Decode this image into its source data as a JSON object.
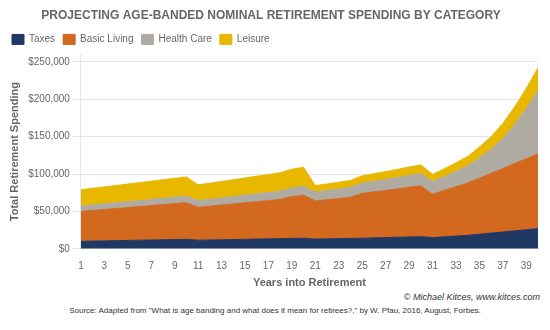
{
  "chart_data": {
    "type": "area",
    "title": "PROJECTING AGE-BANDED NOMINAL RETIREMENT SPENDING BY CATEGORY",
    "x_label": "Years into Retirement",
    "y_label": "Total Retirement Spending",
    "annotations": [
      "© Michael Kitces, www.kitces.com",
      "Source: Adapted from \"What is age banding and what does it mean for retirees?,\" by W. Pfau, 2016, August, Forbes."
    ],
    "x": [
      1,
      2,
      3,
      4,
      5,
      6,
      7,
      8,
      9,
      10,
      11,
      12,
      13,
      14,
      15,
      16,
      17,
      18,
      19,
      20,
      21,
      22,
      23,
      24,
      25,
      26,
      27,
      28,
      29,
      30,
      31,
      32,
      33,
      34,
      35,
      36,
      37,
      38,
      39,
      40
    ],
    "series": [
      {
        "name": "Taxes",
        "color": "#1f3864",
        "values": [
          10000,
          10300,
          10600,
          10900,
          11200,
          11500,
          11800,
          12100,
          12400,
          12700,
          11500,
          11800,
          12100,
          12400,
          12700,
          13000,
          13300,
          13600,
          13900,
          14200,
          13000,
          13300,
          13600,
          13900,
          14200,
          14600,
          15000,
          15400,
          15800,
          16200,
          15000,
          16000,
          17000,
          18000,
          19500,
          21000,
          22500,
          24000,
          25500,
          27000
        ]
      },
      {
        "name": "Basic Living",
        "color": "#d2691e",
        "values": [
          40000,
          41000,
          42000,
          43000,
          44000,
          45000,
          46000,
          47000,
          48000,
          49000,
          44000,
          45200,
          46400,
          47600,
          48800,
          50000,
          51200,
          52400,
          56000,
          57500,
          51000,
          52300,
          53600,
          55000,
          60000,
          61500,
          63000,
          64700,
          66500,
          68000,
          58000,
          62000,
          66000,
          70000,
          75000,
          80000,
          85000,
          90000,
          95000,
          100000
        ]
      },
      {
        "name": "Health Care",
        "color": "#b0aba2",
        "values": [
          7000,
          7200,
          7400,
          7600,
          7800,
          8000,
          8200,
          8400,
          8600,
          8800,
          9000,
          9300,
          9600,
          9900,
          10200,
          10500,
          10800,
          11100,
          11500,
          11800,
          12000,
          12400,
          12800,
          13200,
          13700,
          14200,
          14700,
          15200,
          15800,
          16400,
          17000,
          18500,
          20500,
          23000,
          27000,
          32000,
          40000,
          52000,
          67000,
          85000
        ]
      },
      {
        "name": "Leisure",
        "color": "#e8b800",
        "values": [
          22000,
          22400,
          22800,
          23200,
          23600,
          24000,
          24400,
          24800,
          25200,
          25600,
          21000,
          21500,
          22000,
          22500,
          23000,
          23500,
          24000,
          24500,
          25000,
          25500,
          8500,
          8700,
          9000,
          9300,
          9700,
          10100,
          10500,
          10900,
          11300,
          11700,
          9500,
          10500,
          11500,
          12500,
          14500,
          17000,
          20000,
          23500,
          27000,
          30000
        ]
      }
    ],
    "xlim": [
      1,
      40
    ],
    "xticks": [
      1,
      3,
      5,
      7,
      9,
      11,
      13,
      15,
      17,
      19,
      21,
      23,
      25,
      27,
      29,
      31,
      33,
      35,
      37,
      39
    ],
    "ylim": [
      0,
      260000
    ],
    "yticks": [
      {
        "value": 0,
        "label": "$0"
      },
      {
        "value": 50000,
        "label": "$50,000"
      },
      {
        "value": 100000,
        "label": "$100,000"
      },
      {
        "value": 150000,
        "label": "$150,000"
      },
      {
        "value": 200000,
        "label": "$200,000"
      },
      {
        "value": 250000,
        "label": "$250,000"
      }
    ],
    "stacked": true,
    "grid": "y",
    "legend": "upper left"
  }
}
